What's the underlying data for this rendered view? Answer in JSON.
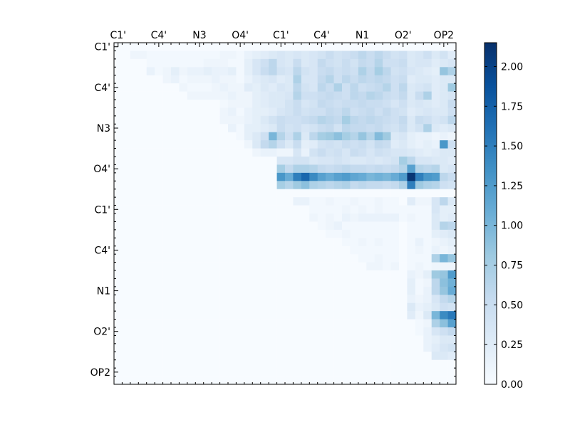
{
  "chart_data": {
    "type": "heatmap",
    "title": "",
    "xlabel": "",
    "ylabel": "",
    "n": 42,
    "x_tick_labels": [
      "C1'",
      "C4'",
      "N3",
      "O4'",
      "C1'",
      "C4'",
      "N1",
      "O2'",
      "OP2"
    ],
    "y_tick_labels": [
      "C1'",
      "C4'",
      "N3",
      "O4'",
      "C1'",
      "C4'",
      "N1",
      "O2'",
      "OP2"
    ],
    "tick_positions": [
      0.5,
      5.5,
      10.5,
      15.5,
      20.5,
      25.5,
      30.5,
      35.5,
      40.5
    ],
    "colorbar": {
      "min": 0,
      "max": 2.15,
      "ticks": [
        0.0,
        0.25,
        0.5,
        0.75,
        1.0,
        1.25,
        1.5,
        1.75,
        2.0
      ],
      "tick_labels": [
        "0.00",
        "0.25",
        "0.50",
        "0.75",
        "1.00",
        "1.25",
        "1.50",
        "1.75",
        "2.00"
      ],
      "colormap": "Blues"
    },
    "rows": [
      "0,0,0,0,0,0,0,0,0,0,0,0,0,0,0,0,0,0,0,0,0,0,0,0,0,0,0,0,0,0,0,0,0,0,0,0,0,0,0,0,0,0",
      "0,0,.1,.1,.05,.05,.05,.05,.05,.05,.05,.05,.05,.1,.1,.05,.15,.2,.25,.3,.35,.3,.35,.3,.35,.4,.5,.4,.45,.5,.6,.5,.6,.5,.4,.45,.3,.35,.45,.3,.4,.25",
      "0,0,0,0,.05,.05,.05,.05,.05,.05,.05,.1,.1,.1,.05,.05,.2,.35,.45,.6,.35,.3,.5,.3,.35,.55,.45,.4,.5,.4,.55,.5,.65,.45,.45,.5,.3,.35,.35,.25,.3,.35",
      "0,0,0,0,.15,.05,.1,.2,.1,.15,.15,.2,.15,.15,.2,.05,.2,.35,.5,.6,.4,.35,.6,.4,.35,.5,.55,.45,.5,.45,.7,.55,.75,.6,.4,.45,.35,.3,.25,.2,.85,.7",
      "0,0,0,0,0,0,.1,.15,.05,.1,.1,.1,.15,.1,.1,.05,.15,.25,.3,.35,.25,.3,.7,.35,.35,.55,.65,.45,.6,.5,.6,.55,.6,.55,.45,.5,.25,.3,.3,.25,.3,.3",
      "0,0,0,0,0,0,0,0,.1,.05,.05,.05,.1,.15,.1,.1,.25,.2,.3,.25,.35,.3,.6,.4,.35,.6,.5,.7,.45,.6,.45,.5,.55,.65,.45,.6,.3,.35,.4,.25,.3,.8",
      "0,0,0,0,0,0,0,0,0,.1,.1,.1,.1,.1,.15,.1,.1,.2,.25,.3,.3,.35,.65,.45,.45,.5,.55,.5,.45,.6,.55,.65,.6,.5,.45,.55,.3,.5,.7,.25,.3,.35",
      "0,0,0,0,0,0,0,0,0,0,0,0,0,.05,.1,.1,.1,.2,.25,.3,.3,.4,.5,.35,.4,.55,.5,.45,.5,.5,.55,.5,.5,.45,.35,.45,.3,.35,.3,.25,.3,.5",
      "0,0,0,0,0,0,0,0,0,0,0,0,0,.1,.15,.05,.15,.2,.2,.25,.35,.4,.5,.4,.45,.45,.55,.5,.6,.45,.5,.55,.45,.55,.45,.4,.25,.3,.35,.3,.3,.45",
      "0,0,0,0,0,0,0,0,0,0,0,0,0,.1,.1,.1,.15,.2,.3,.4,.5,.45,.45,.5,.55,.65,.6,.55,.75,.6,.55,.6,.55,.5,.45,.55,.3,.5,.45,.35,.4,.6",
      "0,0,0,0,0,0,0,0,0,0,0,0,0,0,.15,.05,.2,.2,.25,.3,.5,.4,.45,.35,.4,.5,.55,.4,.6,.55,.55,.5,.55,.45,.4,.5,.3,.4,.7,.3,.25,.3",
      "0,0,0,0,0,0,0,0,0,0,0,0,0,0,0,.05,.2,.3,.45,1.0,.65,.45,.7,.3,.6,.75,.8,.9,.75,.65,.85,.65,.95,.8,.3,.35,.2,.15,.15,.1,.15,.1",
      "0,0,0,0,0,0,0,0,0,0,0,0,0,0,0,0,.1,.3,.55,.65,.45,.3,.5,.2,.25,.4,.45,.4,.5,.45,.5,.4,.55,.5,.25,.3,.2,.15,.2,.15,1.3,.45",
      "0,0,0,0,0,0,0,0,0,0,0,0,0,0,0,0,0,.1,.15,.15,.1,.1,.35,.15,.4,.5,.4,.45,.35,.5,.45,.35,.45,.4,.35,.35,.3,.25,.2,.25,.3,.3",
      "0,0,0,0,0,0,0,0,0,0,0,0,0,0,0,0,0,0,0,0,.35,.35,.4,.4,.3,.35,.35,.4,.35,.3,.3,.35,.3,.35,.4,.75,.6,.35,.35,.3,.3,.25",
      "0,0,0,0,0,0,0,0,0,0,0,0,0,0,0,0,0,0,0,0,.75,.55,.7,.7,.65,.55,.5,.55,.6,.55,.55,.5,.55,.5,.55,.65,1.2,.65,.6,.65,.3,.35",
      "0,0,0,0,0,0,0,0,0,0,0,0,0,0,0,0,0,0,0,0,1.3,1.1,1.5,1.7,1.4,1.2,1.1,1.2,1.25,1.15,1.1,1.0,1.05,1.0,1.1,1.25,2.1,1.5,1.3,1.25,.6,.5",
      "0,0,0,0,0,0,0,0,0,0,0,0,0,0,0,0,0,0,0,0,.75,.65,.8,.9,.7,.65,.6,.65,.7,.55,.6,.55,.55,.5,.55,.7,1.5,.8,.7,.65,.45,.4",
      "0,0,0,0,0,0,0,0,0,0,0,0,0,0,0,0,0,0,0,0,0,0,0,0,0,0,0,0,0,0,0,0,0,0,0,0,0,0,0,0,0,0",
      "0,0,0,0,0,0,0,0,0,0,0,0,0,0,0,0,0,0,0,0,0,0,.15,.15,.05,.05,.1,.05,.05,.1,.05,.05,.1,.05,.05,0,.25,.1,.1,.35,.6,.3",
      "0,0,0,0,0,0,0,0,0,0,0,0,0,0,0,0,0,0,0,0,0,0,0,0,.05,.05,.05,.05,.1,.05,.1,.05,.1,.05,.05,.05,.05,.05,.05,.35,.2,.2",
      "0,0,0,0,0,0,0,0,0,0,0,0,0,0,0,0,0,0,0,0,0,0,0,0,.1,.05,.1,.05,.15,.1,.15,.15,.15,.15,.15,.05,.1,.05,.05,.3,.2,.25",
      "0,0,0,0,0,0,0,0,0,0,0,0,0,0,0,0,0,0,0,0,0,0,0,0,0,.05,.1,.15,.05,.05,.05,.05,.05,.05,.05,0,.05,.05,.05,.3,.65,.6",
      "0,0,0,0,0,0,0,0,0,0,0,0,0,0,0,0,0,0,0,0,0,0,0,0,0,0,.05,.05,.1,.05,.05,.05,.05,.05,.05,0,.05,.05,.05,.2,.25,.3",
      "0,0,0,0,0,0,0,0,0,0,0,0,0,0,0,0,0,0,0,0,0,0,0,0,0,0,0,0,.05,.05,.1,.05,.1,.05,.05,0,.05,.15,.05,.1,.15,.2",
      "0,0,0,0,0,0,0,0,0,0,0,0,0,0,0,0,0,0,0,0,0,0,0,0,0,0,0,0,0,.05,.05,.05,.05,.05,.05,0,.05,.1,.05,.15,.1,.15",
      "0,0,0,0,0,0,0,0,0,0,0,0,0,0,0,0,0,0,0,0,0,0,0,0,0,0,0,0,0,0,.05,.05,.1,.05,.05,0,.05,.05,.05,.7,1.0,.85",
      "0,0,0,0,0,0,0,0,0,0,0,0,0,0,0,0,0,0,0,0,0,0,0,0,0,0,0,0,0,0,0,.1,.1,.05,.1,0,.05,.1,.05,.1,.1,.1",
      "0,0,0,0,0,0,0,0,0,0,0,0,0,0,0,0,0,0,0,0,0,0,0,0,0,0,0,0,0,0,0,0,0,0,0,0,.15,.1,.2,.8,.85,1.25",
      "0,0,0,0,0,0,0,0,0,0,0,0,0,0,0,0,0,0,0,0,0,0,0,0,0,0,0,0,0,0,0,0,0,0,0,0,.2,.05,.1,.6,.9,1.05",
      "0,0,0,0,0,0,0,0,0,0,0,0,0,0,0,0,0,0,0,0,0,0,0,0,0,0,0,0,0,0,0,0,0,0,0,0,.2,.05,.15,.6,.85,1.1",
      "0,0,0,0,0,0,0,0,0,0,0,0,0,0,0,0,0,0,0,0,0,0,0,0,0,0,0,0,0,0,0,0,0,0,0,0,.15,.1,.15,.35,.55,.65",
      "0,0,0,0,0,0,0,0,0,0,0,0,0,0,0,0,0,0,0,0,0,0,0,0,0,0,0,0,0,0,0,0,0,0,0,0,.3,.15,.2,.3,.45,.4",
      "0,0,0,0,0,0,0,0,0,0,0,0,0,0,0,0,0,0,0,0,0,0,0,0,0,0,0,0,0,0,0,0,0,0,0,0,.25,.1,.3,1.0,1.4,1.55",
      "0,0,0,0,0,0,0,0,0,0,0,0,0,0,0,0,0,0,0,0,0,0,0,0,0,0,0,0,0,0,0,0,0,0,0,0,0,.05,.1,.7,.9,1.2",
      "0,0,0,0,0,0,0,0,0,0,0,0,0,0,0,0,0,0,0,0,0,0,0,0,0,0,0,0,0,0,0,0,0,0,0,0,0,.05,.15,.35,.45,.55",
      "0,0,0,0,0,0,0,0,0,0,0,0,0,0,0,0,0,0,0,0,0,0,0,0,0,0,0,0,0,0,0,0,0,0,0,0,0,0,.15,.2,.3,.3",
      "0,0,0,0,0,0,0,0,0,0,0,0,0,0,0,0,0,0,0,0,0,0,0,0,0,0,0,0,0,0,0,0,0,0,0,0,0,0,.15,.25,.35,.4",
      "0,0,0,0,0,0,0,0,0,0,0,0,0,0,0,0,0,0,0,0,0,0,0,0,0,0,0,0,0,0,0,0,0,0,0,0,0,0,0,.3,.3,.25",
      "0,0,0,0,0,0,0,0,0,0,0,0,0,0,0,0,0,0,0,0,0,0,0,0,0,0,0,0,0,0,0,0,0,0,0,0,0,0,0,0,0,0",
      "0,0,0,0,0,0,0,0,0,0,0,0,0,0,0,0,0,0,0,0,0,0,0,0,0,0,0,0,0,0,0,0,0,0,0,0,0,0,0,0,0,0",
      "0,0,0,0,0,0,0,0,0,0,0,0,0,0,0,0,0,0,0,0,0,0,0,0,0,0,0,0,0,0,0,0,0,0,0,0,0,0,0,0,0,0"
    ]
  }
}
